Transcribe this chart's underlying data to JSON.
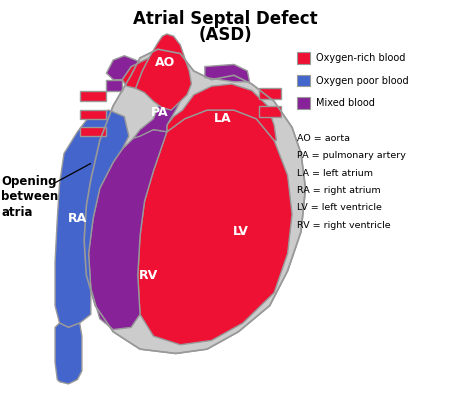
{
  "title_line1": "Atrial Septal Defect",
  "title_line2": "(ASD)",
  "title_fontsize": 12,
  "title_fontweight": "bold",
  "bg_color": "#ffffff",
  "label_color": "#ffffff",
  "label_fontsize": 9,
  "label_fontweight": "bold",
  "colors": {
    "red": "#ee1133",
    "blue": "#4466cc",
    "purple": "#882299",
    "gray": "#cccccc",
    "dark_gray": "#999999",
    "outline": "#aaaaaa"
  },
  "legend_items": [
    {
      "label": "Oxygen-rich blood",
      "color": "#ee1133"
    },
    {
      "label": "Oxygen poor blood",
      "color": "#4466cc"
    },
    {
      "label": "Mixed blood",
      "color": "#882299"
    }
  ],
  "abbrev_lines": [
    "AO = aorta",
    "PA = pulmonary artery",
    "LA = left atrium",
    "RA = right atrium",
    "LV = left ventricle",
    "RV = right ventricle"
  ],
  "opening_label": "Opening\nbetween\natria",
  "opening_label_fontsize": 8.5,
  "opening_label_fontweight": "bold"
}
